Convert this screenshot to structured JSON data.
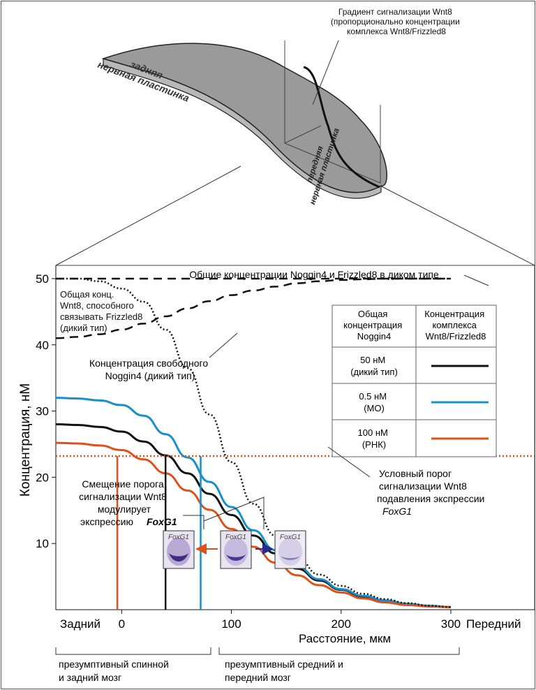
{
  "top": {
    "gradient_label": [
      "Градиент сигнализации Wnt8",
      "(пропорционально концентрации",
      "комплекса Wnt8/Frizzled8"
    ],
    "posterior_plate": [
      "задняя",
      "нервная пластинка"
    ],
    "anterior_plate": [
      "передняя",
      "нервная пластинка"
    ]
  },
  "legend": {
    "col1_header": [
      "Общая",
      "концентрация",
      "Noggin4"
    ],
    "col2_header": [
      "Концентрация",
      "комплекса",
      "Wnt8/Frizzled8"
    ],
    "rows": [
      {
        "label": [
          "50 нМ",
          "(дикий тип)"
        ],
        "color": "#111111"
      },
      {
        "label": [
          "0.5 нМ",
          "(МО)"
        ],
        "color": "#1a8fc7"
      },
      {
        "label": [
          "100 нМ",
          "(РНК)"
        ],
        "color": "#e0501a"
      }
    ]
  },
  "annotations": {
    "total_conc": "Общие концентрации Noggin4 и Frizzled8 в диком типе",
    "wnt8_total": [
      "Общая конц.",
      "Wnt8, способного",
      "связывать Frizzled8",
      "(дикий тип)"
    ],
    "free_noggin": [
      "Концентрация свободного",
      "Noggin4 (дикий тип)"
    ],
    "shift": [
      "Смещение порога",
      "сигнализации Wnt8",
      "модулирует",
      "экспрессию "
    ],
    "shift_gene": "FoxG1",
    "threshold": [
      "Условный порог",
      "сигнализации Wnt8",
      "подавления экспрессии"
    ],
    "threshold_gene": "FoxG1",
    "thumb_label": "FoxG1"
  },
  "axes": {
    "ylabel": "Концентрация, нМ",
    "xlabel": "Расстояние, мкм",
    "left_end": "Задний",
    "right_end": "Передний",
    "yticks": [
      "10",
      "20",
      "30",
      "40",
      "50"
    ],
    "xticks": [
      "0",
      "100",
      "200",
      "300"
    ]
  },
  "regions": {
    "left": [
      "презумптивный спинной",
      "и задний мозг"
    ],
    "right": [
      "презумптивный средний и",
      "передний мозг"
    ]
  },
  "chart_data": {
    "type": "line",
    "xlabel": "Расстояние, мкм",
    "ylabel": "Концентрация, нМ",
    "xlim": [
      -60,
      300
    ],
    "ylim": [
      0,
      52
    ],
    "x_positions": [
      -60,
      -40,
      -20,
      0,
      20,
      40,
      60,
      80,
      100,
      120,
      140,
      160,
      180,
      200,
      220,
      240,
      260,
      280,
      300
    ],
    "series": [
      {
        "name": "50 нМ (дикий тип)",
        "color": "#111111",
        "style": "solid",
        "values": [
          28,
          27.9,
          27.6,
          26.9,
          25.4,
          23.3,
          20.6,
          17.5,
          14.3,
          11.2,
          8.5,
          6.2,
          4.4,
          3.0,
          2.0,
          1.3,
          0.8,
          0.5,
          0.4
        ]
      },
      {
        "name": "0.5 нМ (МО)",
        "color": "#1a8fc7",
        "style": "solid",
        "values": [
          32,
          31.9,
          31.6,
          30.9,
          29.3,
          26.5,
          23.0,
          19.3,
          15.5,
          12.0,
          9.0,
          6.5,
          4.6,
          3.1,
          2.1,
          1.4,
          0.9,
          0.6,
          0.4
        ]
      },
      {
        "name": "100 нМ (РНК)",
        "color": "#e0501a",
        "style": "solid",
        "values": [
          25.2,
          25.1,
          24.8,
          24.1,
          22.7,
          20.6,
          18.0,
          15.1,
          12.2,
          9.5,
          7.1,
          5.2,
          3.7,
          2.6,
          1.7,
          1.1,
          0.7,
          0.5,
          0.4
        ]
      },
      {
        "name": "Общая конц. Wnt8, способного связывать Frizzled8 (дикий тип)",
        "color": "#111111",
        "style": "dotted",
        "values": [
          50,
          50,
          49.6,
          48.5,
          46.5,
          42.3,
          36.5,
          29.5,
          22.3,
          16.0,
          11.2,
          7.8,
          5.3,
          3.6,
          2.4,
          1.6,
          1.0,
          0.6,
          0.4
        ]
      },
      {
        "name": "Концентрация свободного Noggin4 (дикий тип)",
        "color": "#111111",
        "style": "dashed",
        "values": [
          41,
          41.2,
          41.6,
          42.3,
          43.2,
          44.3,
          45.5,
          46.6,
          47.5,
          48.2,
          48.8,
          49.3,
          49.6,
          49.8,
          49.9,
          50,
          50,
          50,
          50
        ]
      },
      {
        "name": "Общие концентрации Noggin4 и Frizzled8 в диком типе",
        "color": "#111111",
        "style": "dashed",
        "values": [
          50,
          50,
          50,
          50,
          50,
          50,
          50,
          50,
          50,
          50,
          50,
          50,
          50,
          50,
          50,
          50,
          50,
          50,
          50
        ]
      }
    ],
    "threshold": {
      "value": 23.2,
      "color": "#e0501a",
      "style": "dotted"
    },
    "threshold_crossings": [
      {
        "series": "100 нМ (РНК)",
        "x": -4,
        "color": "#e0501a"
      },
      {
        "series": "50 нМ (дикий тип)",
        "x": 40,
        "color": "#111111"
      },
      {
        "series": "0.5 нМ (МО)",
        "x": 72,
        "color": "#1a8fc7"
      }
    ]
  }
}
